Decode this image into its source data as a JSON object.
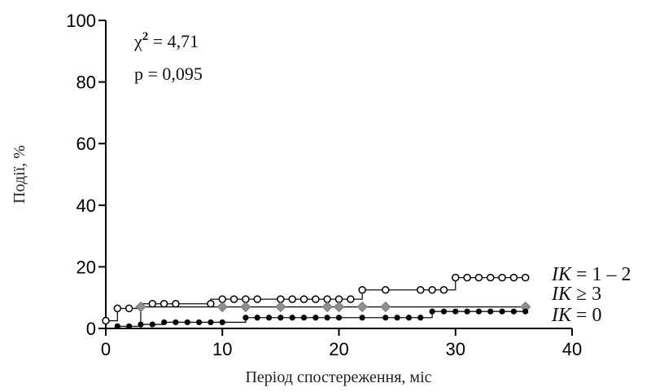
{
  "chart_data": {
    "type": "line",
    "title": "",
    "xlabel": "Період спостереження, міс",
    "ylabel": "Події, %",
    "xlim": [
      0,
      40
    ],
    "ylim": [
      0,
      100
    ],
    "xticks": [
      0,
      10,
      20,
      30,
      40
    ],
    "yticks": [
      0,
      20,
      40,
      60,
      80,
      100
    ],
    "grid": false,
    "annotations": {
      "chi_symbol": "χ",
      "chi_sup": "2",
      "chi_value": " = 4,71",
      "p_text": "p = 0,095"
    },
    "series": [
      {
        "name": "IK = 1 – 2",
        "label_parts": [
          "IK",
          " = 1 – 2"
        ],
        "marker": "circle-open",
        "steps": [
          [
            0,
            2.5
          ],
          [
            1,
            6.5
          ],
          [
            3,
            8
          ],
          [
            9,
            9.5
          ],
          [
            22,
            12.5
          ],
          [
            30,
            16.5
          ],
          [
            36,
            16.5
          ]
        ],
        "markers_x": [
          0,
          1,
          2,
          4,
          5,
          6,
          9,
          10,
          11,
          12,
          13,
          15,
          16,
          17,
          18,
          19,
          20,
          21,
          22,
          24,
          27,
          28,
          29,
          30,
          31,
          32,
          33,
          34,
          35,
          36
        ],
        "markers_y": [
          2.5,
          6.5,
          6.5,
          8,
          8,
          8,
          8,
          9.5,
          9.5,
          9.5,
          9.5,
          9.5,
          9.5,
          9.5,
          9.5,
          9.5,
          9.5,
          9.5,
          12.5,
          12.5,
          12.5,
          12.5,
          12.5,
          16.5,
          16.5,
          16.5,
          16.5,
          16.5,
          16.5,
          16.5
        ]
      },
      {
        "name": "IK ≥ 3",
        "label_parts": [
          "IK",
          " ≥ 3"
        ],
        "marker": "diamond-gray",
        "steps": [
          [
            0,
            0
          ],
          [
            3,
            7
          ],
          [
            36,
            7
          ]
        ],
        "markers_x": [
          3,
          10,
          12,
          15,
          19,
          20,
          22,
          24,
          36
        ],
        "markers_y": [
          7,
          7,
          7,
          7,
          7,
          7,
          7,
          7,
          7
        ]
      },
      {
        "name": "IK = 0",
        "label_parts": [
          "IK",
          " = 0"
        ],
        "marker": "circle-filled",
        "steps": [
          [
            0,
            0
          ],
          [
            1,
            0.7
          ],
          [
            3,
            1.3
          ],
          [
            5,
            2
          ],
          [
            12,
            3.5
          ],
          [
            28,
            5.5
          ],
          [
            36,
            5.5
          ]
        ],
        "markers_x": [
          1,
          2,
          3,
          4,
          5,
          6,
          7,
          8,
          9,
          10,
          12,
          13,
          14,
          15,
          16,
          17,
          18,
          19,
          20,
          22,
          24,
          25,
          26,
          27,
          28,
          29,
          30,
          31,
          32,
          33,
          34,
          35,
          36
        ],
        "markers_y": [
          0.7,
          0.7,
          1.3,
          1.3,
          2,
          2,
          2,
          2,
          2,
          2,
          3.5,
          3.5,
          3.5,
          3.5,
          3.5,
          3.5,
          3.5,
          3.5,
          3.5,
          3.5,
          3.5,
          3.5,
          3.5,
          3.5,
          5.5,
          5.5,
          5.5,
          5.5,
          5.5,
          5.5,
          5.5,
          5.5,
          5.5
        ]
      }
    ]
  }
}
